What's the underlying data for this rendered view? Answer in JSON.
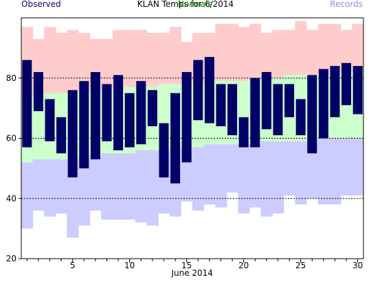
{
  "header": {
    "observed_label": "Observed",
    "title": "KLAN Temps for 6/2014",
    "normals_label": "Normals",
    "records_label": "Records"
  },
  "colors": {
    "observed": "#000066",
    "normals": "#ccffcc",
    "records_high": "#ffcccc",
    "records_low": "#ccccff",
    "title": "#000000",
    "observed_text": "#000080",
    "normals_text": "#008000",
    "records_text": "#a080e0"
  },
  "chart_data": {
    "type": "bar",
    "xlabel": "June 2014",
    "x": [
      1,
      2,
      3,
      4,
      5,
      6,
      7,
      8,
      9,
      10,
      11,
      12,
      13,
      14,
      15,
      16,
      17,
      18,
      19,
      20,
      21,
      22,
      23,
      24,
      25,
      26,
      27,
      28,
      29,
      30
    ],
    "xticks": [
      5,
      10,
      15,
      20,
      25,
      30
    ],
    "ylim": [
      20,
      100
    ],
    "yticks": [
      20,
      40,
      60,
      80
    ],
    "gridlines": [
      40,
      60,
      80
    ],
    "series": [
      {
        "name": "Observed",
        "high": [
          86,
          82,
          73,
          67,
          76,
          79,
          82,
          78,
          81,
          75,
          79,
          76,
          65,
          75,
          82,
          86,
          87,
          78,
          78,
          67,
          80,
          82,
          78,
          78,
          73,
          81,
          83,
          84,
          85,
          84
        ],
        "low": [
          57,
          69,
          59,
          55,
          47,
          50,
          53,
          59,
          56,
          57,
          58,
          64,
          47,
          45,
          52,
          66,
          65,
          64,
          61,
          57,
          57,
          63,
          61,
          67,
          61,
          55,
          60,
          67,
          71,
          68
        ]
      },
      {
        "name": "Normals",
        "high": [
          73,
          74,
          75,
          75,
          75,
          76,
          76,
          76,
          76,
          77,
          77,
          77,
          78,
          78,
          78,
          78,
          79,
          79,
          79,
          79,
          80,
          80,
          80,
          81,
          81,
          81,
          81,
          81,
          82,
          82
        ],
        "low": [
          52,
          53,
          53,
          53,
          53,
          54,
          54,
          55,
          55,
          55,
          56,
          56,
          56,
          57,
          57,
          57,
          58,
          58,
          58,
          58,
          58,
          59,
          59,
          59,
          59,
          59,
          60,
          60,
          60,
          60
        ]
      },
      {
        "name": "Records",
        "high": [
          97,
          93,
          97,
          95,
          96,
          95,
          93,
          93,
          96,
          96,
          96,
          95,
          95,
          97,
          92,
          95,
          95,
          98,
          98,
          97,
          98,
          95,
          96,
          96,
          99,
          96,
          98,
          98,
          96,
          98
        ],
        "low": [
          30,
          36,
          34,
          35,
          27,
          31,
          36,
          33,
          33,
          33,
          32,
          31,
          35,
          34,
          39,
          36,
          38,
          37,
          42,
          35,
          37,
          34,
          35,
          41,
          38,
          40,
          38,
          38,
          41,
          41
        ]
      }
    ]
  }
}
